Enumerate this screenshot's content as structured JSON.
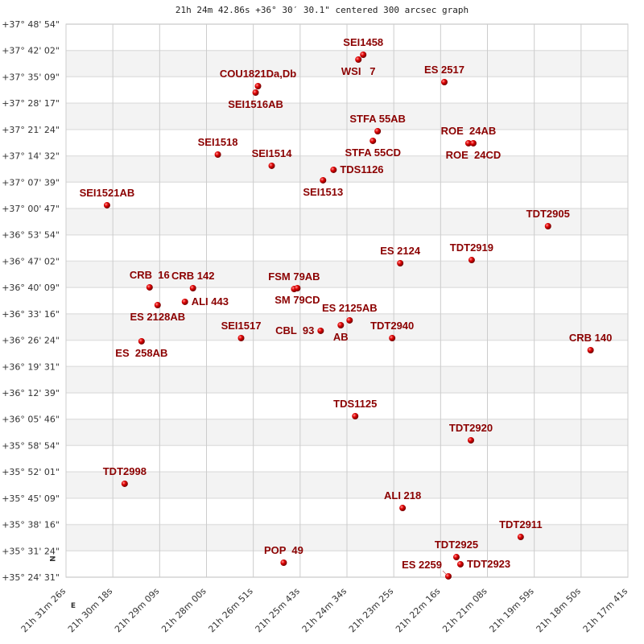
{
  "chart_data": {
    "type": "scatter",
    "title": "21h 24m 42.86s +36° 30′ 30.1\" centered 300 arcsec graph",
    "x_axis": {
      "quantity": "right ascension",
      "range": [
        "21:31:26",
        "21:17:41"
      ],
      "direction": "decreasing-right",
      "tick_labels": [
        "21h 31m 26s",
        "21h 30m 18s",
        "21h 29m 09s",
        "21h 28m 00s",
        "21h 26m 51s",
        "21h 25m 43s",
        "21h 24m 34s",
        "21h 23m 25s",
        "21h 22m 16s",
        "21h 21m 08s",
        "21h 19m 59s",
        "21h 18m 50s",
        "21h 17m 41s"
      ]
    },
    "y_axis": {
      "quantity": "declination",
      "range": [
        "+35:24:31",
        "+37:48:54"
      ],
      "tick_labels": [
        "+37° 48' 54\"",
        "+37° 42' 02\"",
        "+37° 35' 09\"",
        "+37° 28' 17\"",
        "+37° 21' 24\"",
        "+37° 14' 32\"",
        "+37° 07' 39\"",
        "+37° 00' 47\"",
        "+36° 53' 54\"",
        "+36° 47' 02\"",
        "+36° 40' 09\"",
        "+36° 33' 16\"",
        "+36° 26' 24\"",
        "+36° 19' 31\"",
        "+36° 12' 39\"",
        "+36° 05' 46\"",
        "+35° 58' 54\"",
        "+35° 52' 01\"",
        "+35° 45' 09\"",
        "+35° 38' 16\"",
        "+35° 31' 24\"",
        "+35° 24' 31\""
      ]
    },
    "grid": true,
    "compass": {
      "north": "N",
      "east": "E"
    },
    "colors": {
      "point": "#cc0000",
      "label": "#8b0000",
      "band": "#f3f3f3",
      "grid": "#cccccc"
    },
    "points": [
      {
        "label": "SEI1458",
        "ra": "21:24:09.6",
        "dec": "+37:40:55"
      },
      {
        "label": "WSI   7",
        "ra": "21:24:16.7",
        "dec": "+37:39:39"
      },
      {
        "label": "ES 2517",
        "ra": "21:22:10.5",
        "dec": "+37:33:46"
      },
      {
        "label": "COU1821Da,Db",
        "ra": "21:26:44.1",
        "dec": "+37:32:43"
      },
      {
        "label": "SEI1516AB",
        "ra": "21:26:47.6",
        "dec": "+37:31:02"
      },
      {
        "label": "STFA 55AB",
        "ra": "21:23:48.4",
        "dec": "+37:20:57"
      },
      {
        "label": "STFA 55CD",
        "ra": "21:23:55.4",
        "dec": "+37:18:26"
      },
      {
        "label": "ROE  24AB",
        "ra": "21:21:35.1",
        "dec": "+37:17:48"
      },
      {
        "label": "ROE  24CD",
        "ra": "21:21:28.0",
        "dec": "+37:17:48"
      },
      {
        "label": "SEI1518",
        "ra": "21:27:43.1",
        "dec": "+37:14:51"
      },
      {
        "label": "SEI1514",
        "ra": "21:26:24.0",
        "dec": "+37:11:55"
      },
      {
        "label": "TDS1126",
        "ra": "21:24:53.2",
        "dec": "+37:10:52"
      },
      {
        "label": "SEI1513",
        "ra": "21:25:08.6",
        "dec": "+37:08:08"
      },
      {
        "label": "SEI1521AB",
        "ra": "21:30:25.8",
        "dec": "+37:01:37"
      },
      {
        "label": "TDT2905",
        "ra": "21:19:38.3",
        "dec": "+36:56:09"
      },
      {
        "label": "TDT2919",
        "ra": "21:21:30.4",
        "dec": "+36:47:19"
      },
      {
        "label": "ES 2124",
        "ra": "21:23:15.3",
        "dec": "+36:46:29"
      },
      {
        "label": "CRB  16",
        "ra": "21:29:23.3",
        "dec": "+36:40:11"
      },
      {
        "label": "CRB 142",
        "ra": "21:28:19.6",
        "dec": "+36:39:58"
      },
      {
        "label": "FSM 79AB",
        "ra": "21:25:51.0",
        "dec": "+36:39:45"
      },
      {
        "label": "SM 79CD",
        "ra": "21:25:46.3",
        "dec": "+36:39:58"
      },
      {
        "label": "ES 2128AB",
        "ra": "21:29:11.5",
        "dec": "+36:35:33"
      },
      {
        "label": "ALI 443",
        "ra": "21:28:31.4",
        "dec": "+36:36:24"
      },
      {
        "label": "ES 2125AB",
        "ra": "21:24:29.6",
        "dec": "+36:31:34"
      },
      {
        "label": "AB",
        "ra": "21:24:42.6",
        "dec": "+36:30:18"
      },
      {
        "label": "CBL  93",
        "ra": "21:25:12.1",
        "dec": "+36:28:50"
      },
      {
        "label": "ES  258AB",
        "ra": "21:29:35.1",
        "dec": "+36:26:06"
      },
      {
        "label": "SEI1517",
        "ra": "21:27:08.9",
        "dec": "+36:26:56"
      },
      {
        "label": "TDT2940",
        "ra": "21:23:27.1",
        "dec": "+36:26:56"
      },
      {
        "label": "CRB 140",
        "ra": "21:18:35.8",
        "dec": "+36:23:47"
      },
      {
        "label": "TDS1125",
        "ra": "21:24:21.4",
        "dec": "+36:06:33"
      },
      {
        "label": "TDT2920",
        "ra": "21:21:31.5",
        "dec": "+36:00:15"
      },
      {
        "label": "TDT2998",
        "ra": "21:29:59.9",
        "dec": "+35:48:54"
      },
      {
        "label": "ALI 218",
        "ra": "21:23:11.8",
        "dec": "+35:42:35"
      },
      {
        "label": "TDT2911",
        "ra": "21:20:18.4",
        "dec": "+35:35:01"
      },
      {
        "label": "TDT2925",
        "ra": "21:21:52.8",
        "dec": "+35:29:46"
      },
      {
        "label": "TDT2923",
        "ra": "21:21:46.9",
        "dec": "+35:27:53"
      },
      {
        "label": "ES 2259",
        "ra": "21:22:04.6",
        "dec": "+35:24:44"
      },
      {
        "label": "POP  49",
        "ra": "21:26:06.4",
        "dec": "+35:28:18"
      }
    ]
  }
}
